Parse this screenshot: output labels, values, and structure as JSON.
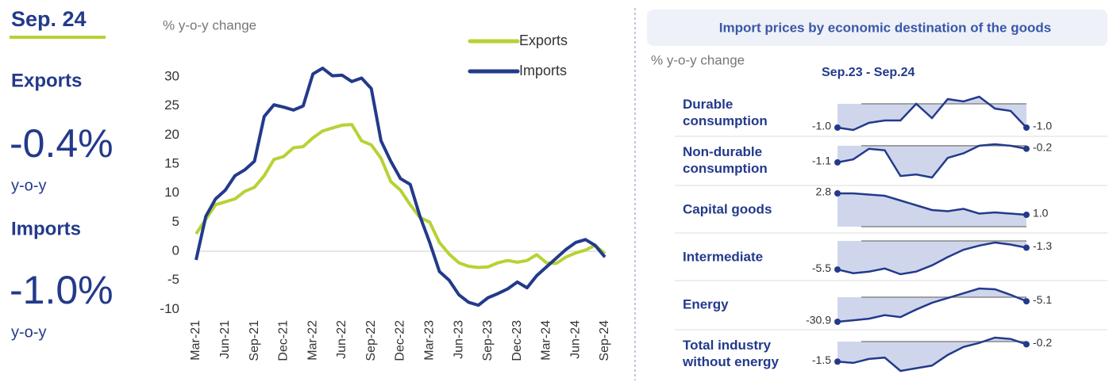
{
  "kpis": {
    "date": "Sep. 24",
    "exports": {
      "label": "Exports",
      "value": "-0.4%",
      "unit": "y-o-y"
    },
    "imports": {
      "label": "Imports",
      "value": "-1.0%",
      "unit": "y-o-y"
    }
  },
  "chart_data": {
    "type": "line",
    "y_label": "% y-o-y change",
    "categories": [
      "Mar-21",
      null,
      null,
      "Jun-21",
      null,
      null,
      "Sep-21",
      null,
      null,
      "Dec-21",
      null,
      null,
      "Mar-22",
      null,
      null,
      "Jun-22",
      null,
      null,
      "Sep-22",
      null,
      null,
      "Dec-22",
      null,
      null,
      "Mar-23",
      null,
      null,
      "Jun-23",
      null,
      null,
      "Sep-23",
      null,
      null,
      "Dec-23",
      null,
      null,
      "Mar-24",
      null,
      null,
      "Jun-24",
      null,
      null,
      "Sep-24"
    ],
    "series": [
      {
        "name": "Exports",
        "color": "#b5d334",
        "values": [
          3,
          5.5,
          8,
          8.5,
          9,
          10.3,
          11,
          13,
          15.8,
          16.3,
          17.8,
          18,
          19.5,
          20.7,
          21.2,
          21.7,
          21.8,
          19,
          18.3,
          16,
          12,
          10.5,
          8,
          5.8,
          5,
          1.5,
          -0.5,
          -2,
          -2.6,
          -2.8,
          -2.7,
          -2,
          -1.6,
          -1.9,
          -1.6,
          -0.6,
          -2,
          -2.1,
          -1,
          -0.3,
          0.2,
          1,
          -0.4
        ]
      },
      {
        "name": "Imports",
        "color": "#233a8b",
        "values": [
          -1.5,
          6,
          9,
          10.5,
          13,
          14,
          15.5,
          23.2,
          25.2,
          24.8,
          24.3,
          25,
          30.5,
          31.5,
          30.2,
          30.3,
          29.2,
          29.8,
          28,
          19,
          15.5,
          12.5,
          11.5,
          6,
          1.5,
          -3.5,
          -5,
          -7.5,
          -8.8,
          -9.3,
          -8,
          -7.3,
          -6.5,
          -5.3,
          -6.3,
          -4.2,
          -2.7,
          -1.2,
          0.3,
          1.5,
          2,
          1,
          -1.0
        ]
      }
    ],
    "ylim": [
      -11,
      32
    ],
    "yticks": [
      30,
      25,
      20,
      15,
      10,
      5,
      0,
      -5,
      -10
    ]
  },
  "panel": {
    "title": "Import prices by economic destination of the goods",
    "y_label": "% y-o-y change",
    "period": "Sep.23 - Sep.24",
    "rows": [
      {
        "name": [
          "Durable",
          "consumption"
        ],
        "values": [
          -1.0,
          -1.1,
          -0.8,
          -0.7,
          -0.7,
          0,
          -0.6,
          0.2,
          0.1,
          0.3,
          -0.2,
          -0.3,
          -1.0
        ],
        "value_labels": [
          "-1.0",
          null,
          null,
          null,
          null,
          null,
          null,
          null,
          null,
          null,
          null,
          null,
          "-1.0"
        ]
      },
      {
        "name": [
          "Non-durable",
          "consumption"
        ],
        "values": [
          -1.1,
          -0.9,
          -0.2,
          -0.3,
          -2.0,
          -1.9,
          -2.1,
          -0.8,
          -0.5,
          0,
          0.1,
          0,
          -0.2
        ],
        "value_labels": [
          "-1.1",
          null,
          null,
          null,
          null,
          null,
          null,
          null,
          null,
          null,
          null,
          null,
          "-0.2"
        ]
      },
      {
        "name": [
          "Capital goods"
        ],
        "values": [
          2.8,
          2.8,
          2.7,
          2.6,
          2.2,
          1.8,
          1.4,
          1.3,
          1.5,
          1.1,
          1.2,
          1.1,
          1.0
        ],
        "value_labels": [
          "2.8",
          null,
          null,
          null,
          null,
          null,
          null,
          null,
          null,
          null,
          null,
          null,
          "1.0"
        ]
      },
      {
        "name": [
          "Intermediate"
        ],
        "values": [
          -5.5,
          -6.2,
          -5.9,
          -5.3,
          -6.4,
          -5.9,
          -4.7,
          -3.1,
          -1.7,
          -0.9,
          -0.3,
          -0.7,
          -1.3
        ],
        "value_labels": [
          "-5.5",
          null,
          null,
          null,
          null,
          null,
          null,
          null,
          null,
          null,
          null,
          null,
          "-1.3"
        ]
      },
      {
        "name": [
          "Energy"
        ],
        "values": [
          -30.9,
          -29,
          -27,
          -22.6,
          -25,
          -15.5,
          -7,
          -1,
          5,
          11,
          10,
          3,
          -5.1
        ],
        "value_labels": [
          "-30.9",
          null,
          null,
          null,
          null,
          null,
          null,
          null,
          null,
          null,
          null,
          null,
          "-5.1"
        ]
      },
      {
        "name": [
          "Total industry",
          "without energy"
        ],
        "values": [
          -1.5,
          -1.6,
          -1.3,
          -1.2,
          -2.2,
          -2.0,
          -1.8,
          -1.0,
          -0.4,
          -0.1,
          0.3,
          0.2,
          -0.2
        ],
        "value_labels": [
          "-1.5",
          null,
          null,
          null,
          null,
          null,
          null,
          null,
          null,
          null,
          null,
          null,
          "-0.2"
        ]
      }
    ]
  }
}
